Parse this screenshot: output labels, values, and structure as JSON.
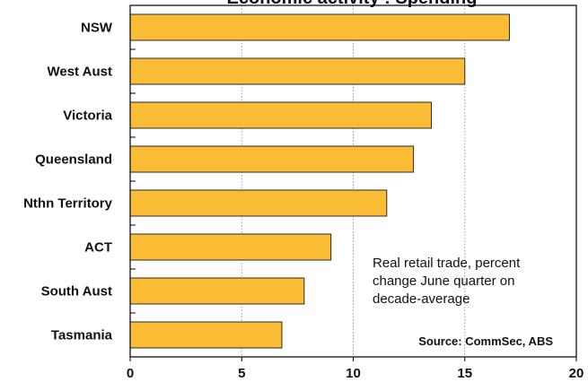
{
  "chart_data": {
    "type": "bar",
    "orientation": "horizontal",
    "title": "Economic activity : Spending",
    "categories": [
      "NSW",
      "West Aust",
      "Victoria",
      "Queensland",
      "Nthn Territory",
      "ACT",
      "South Aust",
      "Tasmania"
    ],
    "values": [
      17.0,
      15.0,
      13.5,
      12.7,
      11.5,
      9.0,
      7.8,
      6.8
    ],
    "xlim": [
      0,
      20
    ],
    "xticks": [
      "0",
      "5",
      "10",
      "15",
      "20"
    ],
    "grid": true,
    "annotation": [
      "Real retail trade, percent",
      "change June quarter on",
      "decade-average"
    ],
    "source": "Source: CommSec, ABS",
    "colors": {
      "bar": "#FBBD36",
      "bar_edge": "#2a2a2a",
      "grid": "#9a9a9a"
    }
  }
}
